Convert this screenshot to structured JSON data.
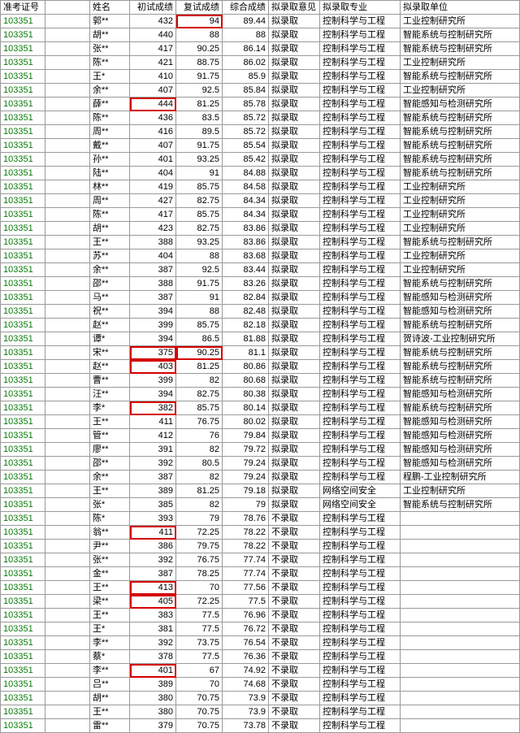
{
  "headers": [
    "准考证号",
    "",
    "姓名",
    "初试成绩",
    "复试成绩",
    "综合成绩",
    "拟录取意见",
    "拟录取专业",
    "拟录取单位"
  ],
  "id_prefix": "103351",
  "major": "控制科学与工程",
  "rows": [
    {
      "n": "郭**",
      "c3": "432",
      "c4": "94",
      "c5": "89.44",
      "ok": true,
      "u": "工业控制研究所",
      "h4": true
    },
    {
      "n": "胡**",
      "c3": "440",
      "c4": "88",
      "c5": "88",
      "ok": true,
      "u": "智能系统与控制研究所"
    },
    {
      "n": "张**",
      "c3": "417",
      "c4": "90.25",
      "c5": "86.14",
      "ok": true,
      "u": "智能系统与控制研究所"
    },
    {
      "n": "陈**",
      "c3": "421",
      "c4": "88.75",
      "c5": "86.02",
      "ok": true,
      "u": "工业控制研究所"
    },
    {
      "n": "王*",
      "c3": "410",
      "c4": "91.75",
      "c5": "85.9",
      "ok": true,
      "u": "智能系统与控制研究所"
    },
    {
      "n": "余**",
      "c3": "407",
      "c4": "92.5",
      "c5": "85.84",
      "ok": true,
      "u": "工业控制研究所"
    },
    {
      "n": "薛**",
      "c3": "444",
      "c4": "81.25",
      "c5": "85.78",
      "ok": true,
      "u": "智能感知与检测研究所",
      "h3": true
    },
    {
      "n": "陈**",
      "c3": "436",
      "c4": "83.5",
      "c5": "85.72",
      "ok": true,
      "u": "智能系统与控制研究所"
    },
    {
      "n": "周**",
      "c3": "416",
      "c4": "89.5",
      "c5": "85.72",
      "ok": true,
      "u": "智能系统与控制研究所"
    },
    {
      "n": "戴**",
      "c3": "407",
      "c4": "91.75",
      "c5": "85.54",
      "ok": true,
      "u": "智能系统与控制研究所"
    },
    {
      "n": "孙**",
      "c3": "401",
      "c4": "93.25",
      "c5": "85.42",
      "ok": true,
      "u": "智能系统与控制研究所"
    },
    {
      "n": "陆**",
      "c3": "404",
      "c4": "91",
      "c5": "84.88",
      "ok": true,
      "u": "智能系统与控制研究所"
    },
    {
      "n": "林**",
      "c3": "419",
      "c4": "85.75",
      "c5": "84.58",
      "ok": true,
      "u": "工业控制研究所"
    },
    {
      "n": "周**",
      "c3": "427",
      "c4": "82.75",
      "c5": "84.34",
      "ok": true,
      "u": "工业控制研究所"
    },
    {
      "n": "陈**",
      "c3": "417",
      "c4": "85.75",
      "c5": "84.34",
      "ok": true,
      "u": "工业控制研究所"
    },
    {
      "n": "胡**",
      "c3": "423",
      "c4": "82.75",
      "c5": "83.86",
      "ok": true,
      "u": "工业控制研究所"
    },
    {
      "n": "王**",
      "c3": "388",
      "c4": "93.25",
      "c5": "83.86",
      "ok": true,
      "u": "智能系统与控制研究所"
    },
    {
      "n": "苏**",
      "c3": "404",
      "c4": "88",
      "c5": "83.68",
      "ok": true,
      "u": "工业控制研究所"
    },
    {
      "n": "余**",
      "c3": "387",
      "c4": "92.5",
      "c5": "83.44",
      "ok": true,
      "u": "工业控制研究所"
    },
    {
      "n": "邵**",
      "c3": "388",
      "c4": "91.75",
      "c5": "83.26",
      "ok": true,
      "u": "智能系统与控制研究所"
    },
    {
      "n": "马**",
      "c3": "387",
      "c4": "91",
      "c5": "82.84",
      "ok": true,
      "u": "智能感知与检测研究所"
    },
    {
      "n": "祝**",
      "c3": "394",
      "c4": "88",
      "c5": "82.48",
      "ok": true,
      "u": "智能感知与检测研究所"
    },
    {
      "n": "赵**",
      "c3": "399",
      "c4": "85.75",
      "c5": "82.18",
      "ok": true,
      "u": "智能系统与控制研究所"
    },
    {
      "n": "谭*",
      "c3": "394",
      "c4": "86.5",
      "c5": "81.88",
      "ok": true,
      "u": "贺诗波-工业控制研究所"
    },
    {
      "n": "宋**",
      "c3": "375",
      "c4": "90.25",
      "c5": "81.1",
      "ok": true,
      "u": "智能系统与控制研究所",
      "h3": true,
      "h4": true
    },
    {
      "n": "赵**",
      "c3": "403",
      "c4": "81.25",
      "c5": "80.86",
      "ok": true,
      "u": "智能系统与控制研究所",
      "h3": true
    },
    {
      "n": "曹**",
      "c3": "399",
      "c4": "82",
      "c5": "80.68",
      "ok": true,
      "u": "智能系统与控制研究所"
    },
    {
      "n": "汪**",
      "c3": "394",
      "c4": "82.75",
      "c5": "80.38",
      "ok": true,
      "u": "智能感知与检测研究所"
    },
    {
      "n": "李*",
      "c3": "382",
      "c4": "85.75",
      "c5": "80.14",
      "ok": true,
      "u": "智能系统与控制研究所",
      "h3": true
    },
    {
      "n": "王**",
      "c3": "411",
      "c4": "76.75",
      "c5": "80.02",
      "ok": true,
      "u": "智能感知与检测研究所"
    },
    {
      "n": "管**",
      "c3": "412",
      "c4": "76",
      "c5": "79.84",
      "ok": true,
      "u": "智能感知与检测研究所"
    },
    {
      "n": "廖**",
      "c3": "391",
      "c4": "82",
      "c5": "79.72",
      "ok": true,
      "u": "智能感知与检测研究所"
    },
    {
      "n": "邵**",
      "c3": "392",
      "c4": "80.5",
      "c5": "79.24",
      "ok": true,
      "u": "智能感知与检测研究所"
    },
    {
      "n": "余**",
      "c3": "387",
      "c4": "82",
      "c5": "79.24",
      "ok": true,
      "u": "程鹏-工业控制研究所"
    },
    {
      "n": "王**",
      "c3": "389",
      "c4": "81.25",
      "c5": "79.18",
      "ok": true,
      "m": "网络空间安全",
      "u": "工业控制研究所"
    },
    {
      "n": "张*",
      "c3": "385",
      "c4": "82",
      "c5": "79",
      "ok": true,
      "m": "网络空间安全",
      "u": "智能系统与控制研究所"
    },
    {
      "n": "陈*",
      "c3": "393",
      "c4": "79",
      "c5": "78.76",
      "ok": false,
      "u": ""
    },
    {
      "n": "翁**",
      "c3": "411",
      "c4": "72.25",
      "c5": "78.22",
      "ok": false,
      "u": "",
      "h3": true
    },
    {
      "n": "尹**",
      "c3": "386",
      "c4": "79.75",
      "c5": "78.22",
      "ok": false,
      "u": ""
    },
    {
      "n": "张**",
      "c3": "392",
      "c4": "76.75",
      "c5": "77.74",
      "ok": false,
      "u": ""
    },
    {
      "n": "金**",
      "c3": "387",
      "c4": "78.25",
      "c5": "77.74",
      "ok": false,
      "u": ""
    },
    {
      "n": "王**",
      "c3": "413",
      "c4": "70",
      "c5": "77.56",
      "ok": false,
      "u": "",
      "h3": true
    },
    {
      "n": "梁**",
      "c3": "405",
      "c4": "72.25",
      "c5": "77.5",
      "ok": false,
      "u": "",
      "h3": true
    },
    {
      "n": "王**",
      "c3": "383",
      "c4": "77.5",
      "c5": "76.96",
      "ok": false,
      "u": ""
    },
    {
      "n": "王*",
      "c3": "381",
      "c4": "77.5",
      "c5": "76.72",
      "ok": false,
      "u": ""
    },
    {
      "n": "李**",
      "c3": "392",
      "c4": "73.75",
      "c5": "76.54",
      "ok": false,
      "u": ""
    },
    {
      "n": "蔡*",
      "c3": "378",
      "c4": "77.5",
      "c5": "76.36",
      "ok": false,
      "u": ""
    },
    {
      "n": "李**",
      "c3": "401",
      "c4": "67",
      "c5": "74.92",
      "ok": false,
      "u": "",
      "h3": true
    },
    {
      "n": "吕**",
      "c3": "389",
      "c4": "70",
      "c5": "74.68",
      "ok": false,
      "u": ""
    },
    {
      "n": "胡**",
      "c3": "380",
      "c4": "70.75",
      "c5": "73.9",
      "ok": false,
      "u": ""
    },
    {
      "n": "王**",
      "c3": "380",
      "c4": "70.75",
      "c5": "73.9",
      "ok": false,
      "u": ""
    },
    {
      "n": "雷**",
      "c3": "379",
      "c4": "70.75",
      "c5": "73.78",
      "ok": false,
      "u": ""
    }
  ]
}
